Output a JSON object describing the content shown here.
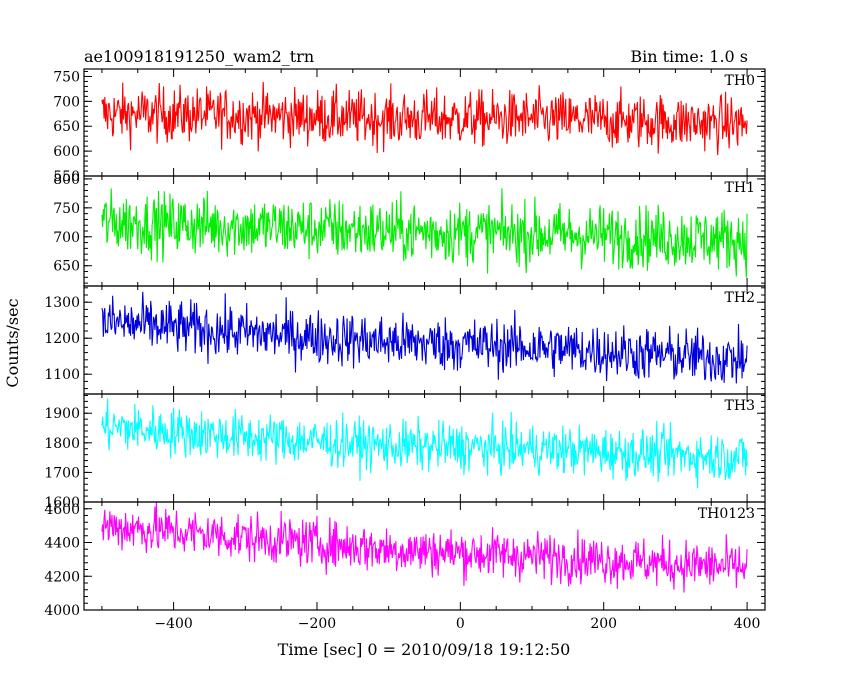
{
  "header": {
    "title": "ae100918191250_wam2_trn",
    "bin_time": "Bin time: 1.0 s"
  },
  "chart_data": {
    "type": "line",
    "title": "ae100918191250_wam2_trn",
    "subtitle": "Bin time: 1.0 s",
    "xlabel": "Time [sec] 0 = 2010/09/18 19:12:50",
    "ylabel": "Counts/sec",
    "xlim": [
      -525,
      425
    ],
    "x_range": [
      -500,
      400
    ],
    "x_ticks": [
      -400,
      -200,
      0,
      200,
      400
    ],
    "x_tick_labels": [
      "−400",
      "−200",
      "0",
      "200",
      "400"
    ],
    "bin_seconds": 1,
    "panels": [
      {
        "name": "TH0",
        "color": "#ff0000",
        "ylim": [
          550,
          765
        ],
        "y_ticks": [
          550,
          600,
          650,
          700,
          750
        ],
        "y_tick_labels": [
          "550",
          "600",
          "650",
          "700",
          "750"
        ],
        "trend": [
          {
            "x": -500,
            "y": 675
          },
          {
            "x": -300,
            "y": 672
          },
          {
            "x": -100,
            "y": 665
          },
          {
            "x": 100,
            "y": 665
          },
          {
            "x": 400,
            "y": 655
          }
        ],
        "noise_sd": 28
      },
      {
        "name": "TH1",
        "color": "#00ee00",
        "ylim": [
          615,
          805
        ],
        "y_ticks": [
          650,
          700,
          750,
          800
        ],
        "y_tick_labels": [
          "650",
          "700",
          "750",
          "800"
        ],
        "trend": [
          {
            "x": -500,
            "y": 725
          },
          {
            "x": -300,
            "y": 718
          },
          {
            "x": -100,
            "y": 710
          },
          {
            "x": 100,
            "y": 705
          },
          {
            "x": 400,
            "y": 695
          }
        ],
        "noise_sd": 27
      },
      {
        "name": "TH2",
        "color": "#0000dd",
        "ylim": [
          1045,
          1345
        ],
        "y_ticks": [
          1100,
          1200,
          1300
        ],
        "y_tick_labels": [
          "1100",
          "1200",
          "1300"
        ],
        "trend": [
          {
            "x": -500,
            "y": 1245
          },
          {
            "x": -300,
            "y": 1215
          },
          {
            "x": -100,
            "y": 1190
          },
          {
            "x": 100,
            "y": 1175
          },
          {
            "x": 400,
            "y": 1140
          }
        ],
        "noise_sd": 38
      },
      {
        "name": "TH3",
        "color": "#00ffff",
        "ylim": [
          1600,
          1965
        ],
        "y_ticks": [
          1600,
          1700,
          1800,
          1900
        ],
        "y_tick_labels": [
          "1600",
          "1700",
          "1800",
          "1900"
        ],
        "trend": [
          {
            "x": -500,
            "y": 1855
          },
          {
            "x": -300,
            "y": 1820
          },
          {
            "x": -100,
            "y": 1790
          },
          {
            "x": 100,
            "y": 1780
          },
          {
            "x": 400,
            "y": 1750
          }
        ],
        "noise_sd": 42
      },
      {
        "name": "TH0123",
        "color": "#ff00ff",
        "ylim": [
          4000,
          4640
        ],
        "y_ticks": [
          4000,
          4200,
          4400,
          4600
        ],
        "y_tick_labels": [
          "4000",
          "4200",
          "4400",
          "4600"
        ],
        "trend": [
          {
            "x": -500,
            "y": 4500
          },
          {
            "x": -300,
            "y": 4430
          },
          {
            "x": -100,
            "y": 4360
          },
          {
            "x": 100,
            "y": 4320
          },
          {
            "x": 400,
            "y": 4250
          }
        ],
        "noise_sd": 72
      }
    ]
  }
}
